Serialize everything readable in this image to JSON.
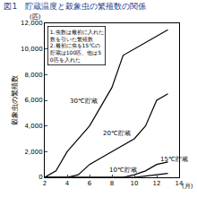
{
  "chart_data": {
    "type": "line",
    "title": "図1　貯蔵温度と穀象虫の繁殖数の関係",
    "y_label": "穀象虫の繁殖数",
    "y_unit": "(匹)",
    "x_unit": "(月)",
    "notes": [
      "1.虫数は最初に入れた数を引いた繁殖数",
      "2.最初に虫を15℃の貯蔵は100匹、他は50匹を入れた"
    ],
    "x": [
      2,
      3,
      4,
      5,
      6,
      7,
      8,
      9,
      10,
      11,
      12,
      13
    ],
    "series": [
      {
        "name": "30℃貯蔵",
        "color": "#000000",
        "values": [
          0,
          500,
          2000,
          3000,
          4000,
          5500,
          7000,
          9500,
          10000,
          10500,
          11000,
          11500
        ]
      },
      {
        "name": "20℃貯蔵",
        "color": "#000000",
        "values": [
          0,
          0,
          0,
          200,
          1000,
          1500,
          2000,
          2500,
          3000,
          4000,
          6000,
          6500
        ]
      },
      {
        "name": "10℃貯蔵",
        "color": "#000000",
        "values": [
          0,
          0,
          0,
          0,
          0,
          0,
          0,
          0,
          0,
          100,
          200,
          300
        ]
      },
      {
        "name": "15℃貯蔵",
        "color": "#000000",
        "values": [
          0,
          0,
          0,
          0,
          0,
          0,
          0,
          0,
          200,
          500,
          1000,
          1200
        ]
      }
    ],
    "xlim": [
      2,
      14
    ],
    "xticks": [
      2,
      4,
      6,
      8,
      10,
      12,
      14
    ],
    "ylim": [
      0,
      12000
    ],
    "yticks": [
      0,
      {
        "value": 2000,
        "label": "2,000"
      },
      {
        "value": 4000,
        "label": "4,000"
      },
      {
        "value": 6000,
        "label": "6,000"
      },
      {
        "value": 8000,
        "label": "8,000"
      },
      {
        "value": 10000,
        "label": "10,000"
      },
      {
        "value": 12000,
        "label": "12,000"
      }
    ],
    "grid": false
  }
}
